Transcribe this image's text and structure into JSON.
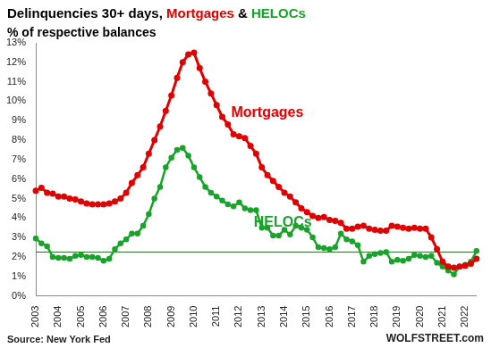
{
  "chart_data": {
    "type": "line",
    "title": "Delinquencies 30+ days, Mortgages & HELOCs",
    "subtitle": "% of respective balances",
    "source": "Source: New York Fed",
    "credit": "WOLFSTREET.com",
    "categories": [
      "2003",
      null,
      null,
      null,
      "2004",
      null,
      null,
      null,
      "2005",
      null,
      null,
      null,
      "2006",
      null,
      null,
      null,
      "2007",
      null,
      null,
      null,
      "2008",
      null,
      null,
      null,
      "2009",
      null,
      null,
      null,
      "2010",
      null,
      null,
      null,
      "2011",
      null,
      null,
      null,
      "2012",
      null,
      null,
      null,
      "2013",
      null,
      null,
      null,
      "2014",
      null,
      null,
      null,
      "2015",
      null,
      null,
      null,
      "2016",
      null,
      null,
      null,
      "2017",
      null,
      null,
      null,
      "2018",
      null,
      null,
      null,
      "2019",
      null,
      null,
      null,
      "2020",
      null,
      null,
      null,
      "2021",
      null,
      null,
      null,
      "2022",
      null,
      null
    ],
    "series": [
      {
        "name": "Mortgages",
        "color": "#e00000",
        "marker": "circle",
        "line_style": "solid",
        "values": [
          5.4,
          5.55,
          5.3,
          5.25,
          5.1,
          5.1,
          5.0,
          4.95,
          4.85,
          4.75,
          4.7,
          4.7,
          4.7,
          4.75,
          4.85,
          5.0,
          5.3,
          5.8,
          6.2,
          6.6,
          7.3,
          8.0,
          8.7,
          9.5,
          10.3,
          11.2,
          12.0,
          12.4,
          12.5,
          11.7,
          11.0,
          10.4,
          9.8,
          9.2,
          8.8,
          8.3,
          8.2,
          8.1,
          7.7,
          7.3,
          6.6,
          6.2,
          5.9,
          5.6,
          5.3,
          5.1,
          4.8,
          4.5,
          4.3,
          4.1,
          4.0,
          4.05,
          3.9,
          3.85,
          3.75,
          3.45,
          3.45,
          3.55,
          3.6,
          3.45,
          3.4,
          3.35,
          3.35,
          3.6,
          3.55,
          3.5,
          3.45,
          3.5,
          3.45,
          3.45,
          3.0,
          2.4,
          1.75,
          1.5,
          1.45,
          1.5,
          1.55,
          1.65,
          1.9
        ]
      },
      {
        "name": "HELOCs",
        "color": "#1aa32a",
        "marker": "circle",
        "line_style": "solid",
        "values": [
          2.95,
          2.7,
          2.55,
          2.0,
          1.95,
          1.95,
          1.9,
          2.05,
          2.1,
          2.0,
          2.0,
          1.95,
          1.8,
          1.9,
          2.4,
          2.7,
          2.9,
          3.2,
          3.2,
          3.6,
          4.2,
          5.0,
          5.6,
          6.6,
          7.1,
          7.5,
          7.6,
          7.2,
          6.6,
          6.1,
          5.6,
          5.3,
          5.1,
          4.9,
          4.7,
          4.6,
          4.8,
          4.5,
          4.4,
          4.4,
          3.5,
          3.5,
          3.1,
          3.1,
          3.4,
          3.15,
          3.6,
          3.5,
          3.4,
          3.0,
          2.5,
          2.45,
          2.4,
          2.5,
          3.2,
          2.9,
          2.8,
          2.6,
          1.75,
          2.05,
          2.15,
          2.2,
          2.25,
          1.75,
          1.85,
          1.8,
          1.9,
          2.1,
          2.05,
          2.0,
          2.05,
          1.7,
          1.5,
          1.3,
          1.1,
          1.5,
          1.6,
          1.75,
          2.3
        ]
      }
    ],
    "reference_line": {
      "value": 2.25,
      "color": "#2e6b2e"
    },
    "ylim": [
      0,
      13
    ],
    "yticks": [
      {
        "value": 0,
        "label": "0%"
      },
      {
        "value": 1,
        "label": "1%"
      },
      {
        "value": 2,
        "label": "2%"
      },
      {
        "value": 3,
        "label": "3%"
      },
      {
        "value": 4,
        "label": "4%"
      },
      {
        "value": 5,
        "label": "5%"
      },
      {
        "value": 6,
        "label": "6%"
      },
      {
        "value": 7,
        "label": "7%"
      },
      {
        "value": 8,
        "label": "8%"
      },
      {
        "value": 9,
        "label": "9%"
      },
      {
        "value": 10,
        "label": "10%"
      },
      {
        "value": 11,
        "label": "11%"
      },
      {
        "value": 12,
        "label": "12%"
      },
      {
        "value": 13,
        "label": "13%"
      }
    ],
    "grid": false,
    "legend": "none"
  }
}
